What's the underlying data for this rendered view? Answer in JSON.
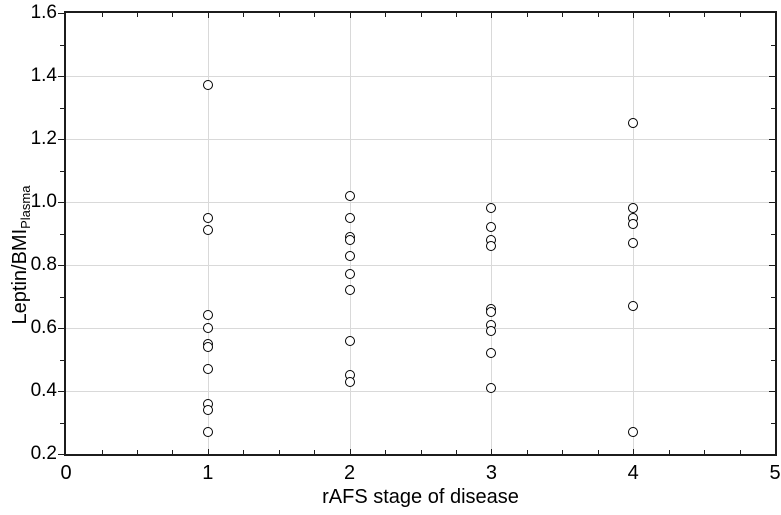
{
  "chart_data": {
    "type": "scatter",
    "title": "",
    "xlabel": "rAFS stage of disease",
    "ylabel": "Leptin/BMI",
    "ylabel_subscript": "Plasma",
    "xlim": [
      0,
      5
    ],
    "ylim": [
      0.2,
      1.6
    ],
    "x_tick_values": [
      0,
      1,
      2,
      3,
      4,
      5
    ],
    "x_tick_labels": [
      "0",
      "1",
      "2",
      "3",
      "4",
      "5"
    ],
    "y_tick_values": [
      0.2,
      0.4,
      0.6,
      0.8,
      1.0,
      1.2,
      1.4,
      1.6
    ],
    "y_tick_labels": [
      "0.2",
      "0.4",
      "0.6",
      "0.8",
      "1.0",
      "1.2",
      "1.4",
      "1.6"
    ],
    "x_minor_tick_step": 0.25,
    "y_minor_tick_step": 0.1,
    "grid": true,
    "legend": "none",
    "marker": "open-circle",
    "colors": {
      "background": "#ffffff",
      "frame": "#1c1c1c",
      "grid": "#d9d9d9",
      "marker_stroke": "#000000",
      "marker_fill": "#ffffff"
    },
    "groups": [
      {
        "x": 1,
        "y_values": [
          1.37,
          0.95,
          0.91,
          0.64,
          0.6,
          0.55,
          0.54,
          0.47,
          0.36,
          0.34,
          0.27
        ]
      },
      {
        "x": 2,
        "y_values": [
          1.02,
          0.95,
          0.89,
          0.88,
          0.83,
          0.77,
          0.72,
          0.56,
          0.45,
          0.43
        ]
      },
      {
        "x": 3,
        "y_values": [
          0.98,
          0.92,
          0.88,
          0.86,
          0.66,
          0.65,
          0.61,
          0.59,
          0.52,
          0.41
        ]
      },
      {
        "x": 4,
        "y_values": [
          1.25,
          0.98,
          0.95,
          0.93,
          0.87,
          0.67,
          0.27
        ]
      }
    ]
  }
}
